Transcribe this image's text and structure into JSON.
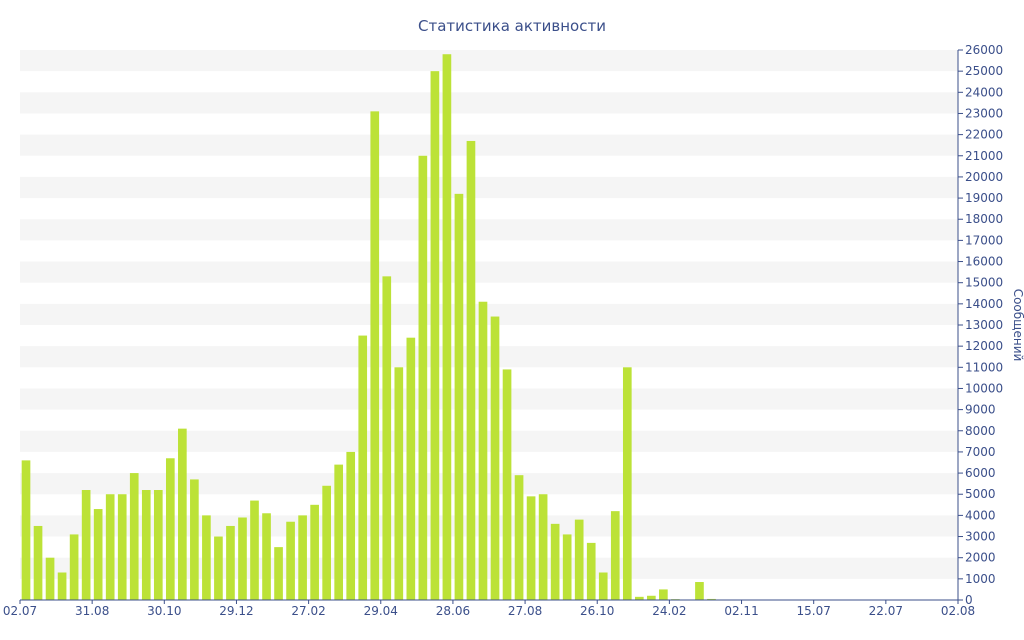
{
  "chart_data": {
    "type": "bar",
    "title": "Статистика активности",
    "xlabel": "",
    "ylabel": "Сообщений",
    "y_axis_side": "right",
    "ylim": [
      0,
      26000
    ],
    "ytick_step": 1000,
    "grid": "alternating-horizontal-bands",
    "colors": {
      "bar": "#bce237",
      "band": "#f5f5f5",
      "axis": "#3b4f8a",
      "text": "#3b4f8a"
    },
    "x_tick_labels": [
      "02.07",
      "31.08",
      "30.10",
      "29.12",
      "27.02",
      "29.04",
      "28.06",
      "27.08",
      "26.10",
      "24.02",
      "02.11",
      "15.07",
      "22.07",
      "02.08"
    ],
    "values": [
      6600,
      3500,
      2000,
      1300,
      3100,
      5200,
      4300,
      5000,
      5000,
      6000,
      5200,
      5200,
      6700,
      8100,
      5700,
      4000,
      3000,
      3500,
      3900,
      4700,
      4100,
      2500,
      3700,
      4000,
      4500,
      5400,
      6400,
      7000,
      12500,
      23100,
      15300,
      11000,
      12400,
      21000,
      25000,
      25800,
      19200,
      21700,
      14100,
      13400,
      10900,
      5900,
      4900,
      5000,
      3600,
      3100,
      3800,
      2700,
      1300,
      4200,
      11000,
      150,
      200,
      500,
      40,
      20,
      850,
      50,
      20,
      10,
      10,
      10,
      10,
      10,
      10,
      10,
      10,
      10,
      10,
      10,
      10,
      10,
      10,
      10,
      10,
      10,
      10,
      10
    ]
  }
}
